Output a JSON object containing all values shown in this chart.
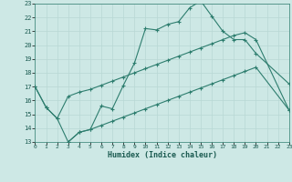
{
  "bg_color": "#cde8e5",
  "grid_color": "#b8d8d4",
  "line_color": "#2d7d6e",
  "xlabel": "Humidex (Indice chaleur)",
  "xlim": [
    0,
    23
  ],
  "ylim": [
    13,
    23
  ],
  "yticks": [
    13,
    14,
    15,
    16,
    17,
    18,
    19,
    20,
    21,
    22,
    23
  ],
  "xticks": [
    0,
    1,
    2,
    3,
    4,
    5,
    6,
    7,
    8,
    9,
    10,
    11,
    12,
    13,
    14,
    15,
    16,
    17,
    18,
    19,
    20,
    21,
    22,
    23
  ],
  "line1_x": [
    0,
    1,
    2,
    3,
    4,
    5,
    6,
    7,
    8,
    9,
    10,
    11,
    12,
    13,
    14,
    15,
    16,
    17,
    18,
    19,
    20,
    23
  ],
  "line1_y": [
    17.0,
    15.5,
    14.7,
    13.0,
    13.7,
    13.9,
    15.6,
    15.4,
    17.1,
    18.7,
    21.2,
    21.1,
    21.5,
    21.7,
    22.7,
    23.2,
    22.1,
    21.0,
    20.4,
    20.4,
    19.4,
    17.2
  ],
  "line2_x": [
    0,
    1,
    2,
    3,
    4,
    5,
    6,
    7,
    8,
    9,
    10,
    11,
    12,
    13,
    14,
    15,
    16,
    17,
    18,
    19,
    20,
    23
  ],
  "line2_y": [
    17.0,
    15.5,
    14.7,
    16.3,
    16.6,
    16.8,
    17.1,
    17.4,
    17.7,
    18.0,
    18.3,
    18.6,
    18.9,
    19.2,
    19.5,
    19.8,
    20.1,
    20.4,
    20.7,
    20.9,
    20.4,
    15.3
  ],
  "line3_x": [
    3,
    4,
    5,
    6,
    7,
    8,
    9,
    10,
    11,
    12,
    13,
    14,
    15,
    16,
    17,
    18,
    19,
    20,
    23
  ],
  "line3_y": [
    13.0,
    13.7,
    13.9,
    14.2,
    14.5,
    14.8,
    15.1,
    15.4,
    15.7,
    16.0,
    16.3,
    16.6,
    16.9,
    17.2,
    17.5,
    17.8,
    18.1,
    18.4,
    15.3
  ]
}
